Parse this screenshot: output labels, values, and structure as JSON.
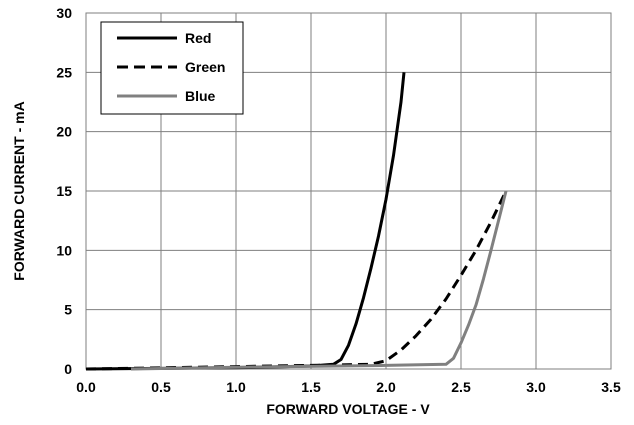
{
  "chart_data": {
    "type": "line",
    "xlabel": "FORWARD VOLTAGE - V",
    "ylabel": "FORWARD CURRENT - mA",
    "xlim": [
      0,
      3.5
    ],
    "ylim": [
      0,
      30
    ],
    "x_ticks": [
      "0.0",
      "0.5",
      "1.0",
      "1.5",
      "2.0",
      "2.5",
      "3.0",
      "3.5"
    ],
    "y_ticks": [
      "0",
      "5",
      "10",
      "15",
      "20",
      "25",
      "30"
    ],
    "grid": true,
    "legend_position": "top-left",
    "series": [
      {
        "name": "Red",
        "color": "#000000",
        "style": "solid",
        "points": [
          [
            0.0,
            0.0
          ],
          [
            0.5,
            0.05
          ],
          [
            1.0,
            0.1
          ],
          [
            1.5,
            0.25
          ],
          [
            1.65,
            0.4
          ],
          [
            1.7,
            0.8
          ],
          [
            1.75,
            2.0
          ],
          [
            1.8,
            3.8
          ],
          [
            1.85,
            6.0
          ],
          [
            1.9,
            8.5
          ],
          [
            1.95,
            11.2
          ],
          [
            2.0,
            14.3
          ],
          [
            2.05,
            18.0
          ],
          [
            2.1,
            22.5
          ],
          [
            2.12,
            25.0
          ]
        ]
      },
      {
        "name": "Green",
        "color": "#000000",
        "style": "dashed",
        "points": [
          [
            0.0,
            0.0
          ],
          [
            0.5,
            0.1
          ],
          [
            1.0,
            0.2
          ],
          [
            1.5,
            0.3
          ],
          [
            1.9,
            0.4
          ],
          [
            2.0,
            0.7
          ],
          [
            2.1,
            1.6
          ],
          [
            2.2,
            2.8
          ],
          [
            2.3,
            4.2
          ],
          [
            2.4,
            5.9
          ],
          [
            2.5,
            7.9
          ],
          [
            2.6,
            10.0
          ],
          [
            2.7,
            12.4
          ],
          [
            2.8,
            15.0
          ]
        ]
      },
      {
        "name": "Blue",
        "color": "#808080",
        "style": "solid",
        "points": [
          [
            0.3,
            0.0
          ],
          [
            1.0,
            0.15
          ],
          [
            2.0,
            0.3
          ],
          [
            2.4,
            0.4
          ],
          [
            2.45,
            0.9
          ],
          [
            2.5,
            2.2
          ],
          [
            2.55,
            3.7
          ],
          [
            2.6,
            5.4
          ],
          [
            2.65,
            7.6
          ],
          [
            2.7,
            10.0
          ],
          [
            2.75,
            12.5
          ],
          [
            2.8,
            15.0
          ]
        ]
      }
    ]
  }
}
